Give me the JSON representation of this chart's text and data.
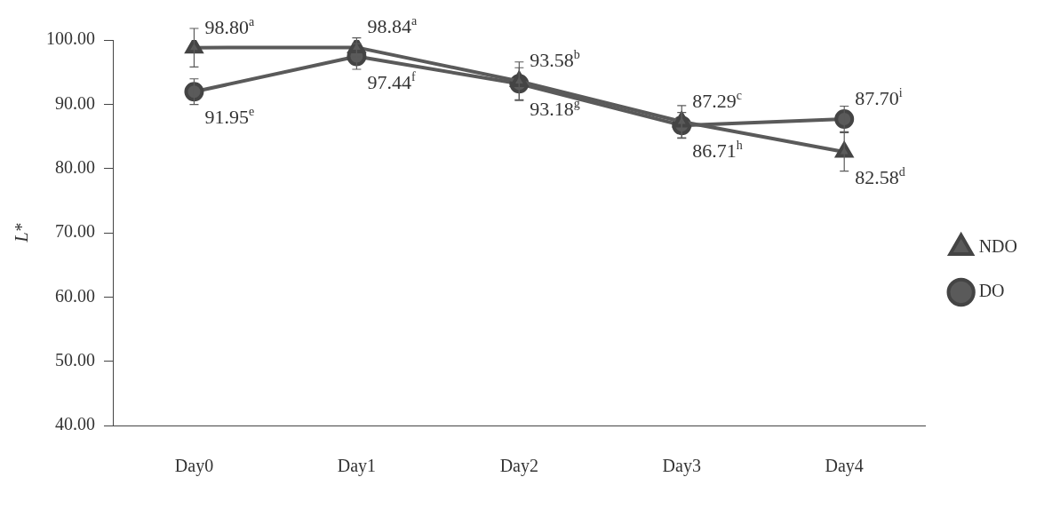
{
  "chart_data": {
    "type": "line",
    "ylabel": "L*",
    "categories": [
      "Day0",
      "Day1",
      "Day2",
      "Day3",
      "Day4"
    ],
    "series": [
      {
        "name": "NDO",
        "color": "#5a5a5a",
        "marker": "triangle",
        "values": [
          98.8,
          98.84,
          93.58,
          87.29,
          82.58
        ],
        "errors": [
          3,
          1.5,
          3,
          2.5,
          3
        ],
        "value_labels": [
          "98.80$^{a}$",
          "98.84$^{a}$",
          "93.58$^{b}$",
          "87.29$^{c}$",
          "82.58$^{d}$"
        ]
      },
      {
        "name": "DO",
        "color": "#5a5a5a",
        "marker": "circle",
        "values": [
          91.95,
          97.44,
          93.18,
          86.71,
          87.7
        ],
        "errors": [
          2,
          2,
          2.5,
          2,
          2
        ],
        "value_labels": [
          "91.95$^{e}$",
          "97.44$^{f}$",
          "93.18$^{g}$",
          "86.71$^{h}$",
          "87.70$^{i}$"
        ]
      }
    ],
    "ylim": [
      40,
      100
    ],
    "yticks": [
      {
        "value": 40,
        "label": "40.00"
      },
      {
        "value": 50,
        "label": "50.00"
      },
      {
        "value": 60,
        "label": "60.00"
      },
      {
        "value": 70,
        "label": "70.00"
      },
      {
        "value": 80,
        "label": "80.00"
      },
      {
        "value": 90,
        "label": "90.00"
      },
      {
        "value": 100,
        "label": "100.00"
      }
    ],
    "grid": false,
    "legend": "right",
    "line_style": "solid"
  }
}
